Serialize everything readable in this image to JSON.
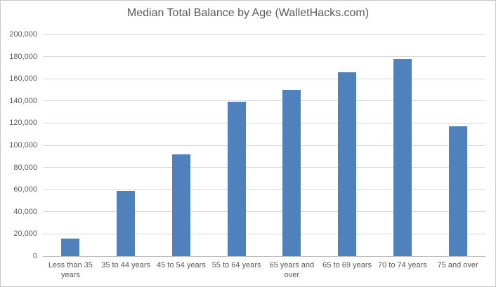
{
  "chart_data": {
    "type": "bar",
    "title": "Median Total Balance by Age (WalletHacks.com)",
    "categories": [
      "Less than 35 years",
      "35 to 44 years",
      "45 to 54 years",
      "55 to 64 years",
      "65 years and over",
      "65 to 69 years",
      "70 to 74 years",
      "75 and over"
    ],
    "values": [
      16000,
      59000,
      92000,
      139000,
      150000,
      166000,
      178000,
      117000
    ],
    "xlabel": "",
    "ylabel": "",
    "ylim": [
      0,
      200000
    ],
    "ytick_step": 20000,
    "ytick_labels": [
      "0",
      "20,000",
      "40,000",
      "60,000",
      "80,000",
      "100,000",
      "120,000",
      "140,000",
      "160,000",
      "180,000",
      "200,000"
    ],
    "grid": true,
    "legend": false,
    "colors": {
      "bar": "#4f81bd",
      "text": "#595959",
      "gridline": "#d9d9d9",
      "axis_line": "#bfbfbf",
      "frame_border": "#c9c9c9",
      "background": "#ffffff"
    }
  }
}
